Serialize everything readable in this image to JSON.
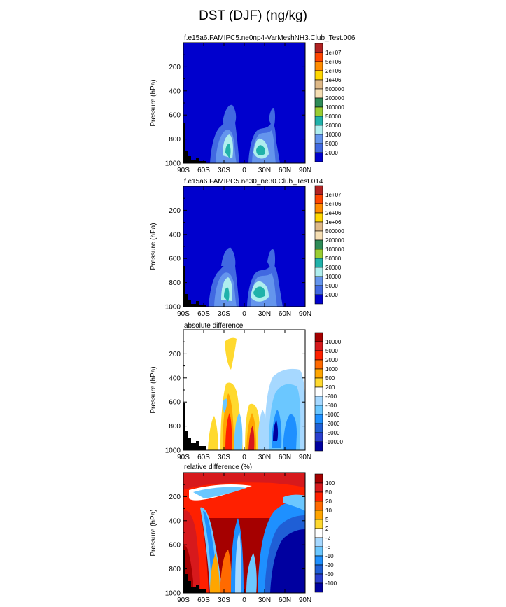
{
  "title": "DST (DJF) (ng/kg)",
  "x_ticks": [
    "90S",
    "60S",
    "30S",
    "0",
    "30N",
    "60N",
    "90N"
  ],
  "y_ticks": [
    "200",
    "400",
    "600",
    "800",
    "1000"
  ],
  "ylabel": "Pressure (hPa)",
  "chart_data": [
    {
      "type": "heatmap",
      "title": "f.e15a6.FAMIPC5.ne0np4-VarMeshNH3.Club_Test.006",
      "xlabel": "",
      "ylabel": "Pressure (hPa)",
      "x_range": [
        -90,
        90
      ],
      "y_range": [
        1000,
        0
      ],
      "x_ticks": [
        "90S",
        "60S",
        "30S",
        "0",
        "30N",
        "60N",
        "90N"
      ],
      "y_ticks": [
        200,
        400,
        600,
        800,
        1000
      ],
      "colorbar": {
        "levels": [
          "1e+07",
          "5e+06",
          "2e+06",
          "1e+06",
          "500000",
          "200000",
          "100000",
          "50000",
          "20000",
          "10000",
          "5000",
          "2000"
        ],
        "colors": [
          "#b22222",
          "#ff4500",
          "#ff8c00",
          "#ffd700",
          "#deb887",
          "#f5deb3",
          "#2e8b57",
          "#9acd32",
          "#20b2aa",
          "#afeeee",
          "#6495ed",
          "#4169e1",
          "#0000cd"
        ]
      }
    },
    {
      "type": "heatmap",
      "title": "f.e15a6.FAMIPC5.ne30_ne30.Club_Test.014",
      "xlabel": "",
      "ylabel": "Pressure (hPa)",
      "x_range": [
        -90,
        90
      ],
      "y_range": [
        1000,
        0
      ],
      "x_ticks": [
        "90S",
        "60S",
        "30S",
        "0",
        "30N",
        "60N",
        "90N"
      ],
      "y_ticks": [
        200,
        400,
        600,
        800,
        1000
      ],
      "colorbar": {
        "levels": [
          "1e+07",
          "5e+06",
          "2e+06",
          "1e+06",
          "500000",
          "200000",
          "100000",
          "50000",
          "20000",
          "10000",
          "5000",
          "2000"
        ],
        "colors": [
          "#b22222",
          "#ff4500",
          "#ff8c00",
          "#ffd700",
          "#deb887",
          "#f5deb3",
          "#2e8b57",
          "#9acd32",
          "#20b2aa",
          "#afeeee",
          "#6495ed",
          "#4169e1",
          "#0000cd"
        ]
      }
    },
    {
      "type": "heatmap",
      "title": "absolute difference",
      "xlabel": "",
      "ylabel": "Pressure (hPa)",
      "x_range": [
        -90,
        90
      ],
      "y_range": [
        1000,
        0
      ],
      "x_ticks": [
        "90S",
        "60S",
        "30S",
        "0",
        "30N",
        "60N",
        "90N"
      ],
      "y_ticks": [
        200,
        400,
        600,
        800,
        1000
      ],
      "colorbar": {
        "levels": [
          "10000",
          "5000",
          "2000",
          "1000",
          "500",
          "200",
          "-200",
          "-500",
          "-1000",
          "-2000",
          "-5000",
          "-10000"
        ],
        "colors": [
          "#a50000",
          "#d7191c",
          "#ff2000",
          "#ff6a00",
          "#ffa500",
          "#ffd92f",
          "#ffffff",
          "#a6d8ff",
          "#6bc7ff",
          "#1e90ff",
          "#1f5fd6",
          "#2a3fd0",
          "#0000a0"
        ]
      }
    },
    {
      "type": "heatmap",
      "title": "relative difference (%)",
      "xlabel": "",
      "ylabel": "Pressure (hPa)",
      "x_range": [
        -90,
        90
      ],
      "y_range": [
        1000,
        0
      ],
      "x_ticks": [
        "90S",
        "60S",
        "30S",
        "0",
        "30N",
        "60N",
        "90N"
      ],
      "y_ticks": [
        200,
        400,
        600,
        800,
        1000
      ],
      "colorbar": {
        "levels": [
          "100",
          "50",
          "20",
          "10",
          "5",
          "2",
          "-2",
          "-5",
          "-10",
          "-20",
          "-50",
          "-100"
        ],
        "colors": [
          "#a50000",
          "#d7191c",
          "#ff2000",
          "#ff6a00",
          "#ffa500",
          "#ffd92f",
          "#ffffff",
          "#a6d8ff",
          "#6bc7ff",
          "#1e90ff",
          "#1f5fd6",
          "#2a3fd0",
          "#0000a0"
        ]
      }
    }
  ]
}
